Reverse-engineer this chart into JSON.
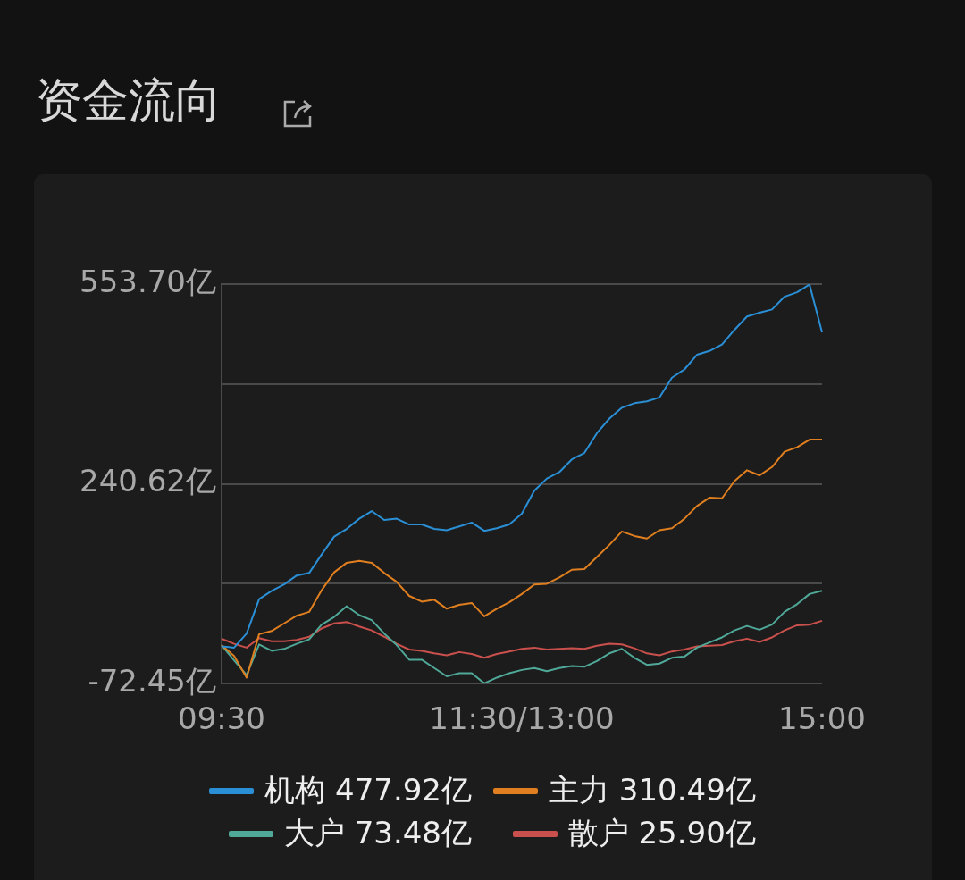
{
  "chart_data": {
    "type": "line",
    "title": "资金流向",
    "categories": [
      "09:30",
      null,
      null,
      null,
      null,
      null,
      null,
      null,
      null,
      null,
      null,
      null,
      null,
      null,
      null,
      null,
      null,
      null,
      null,
      null,
      null,
      null,
      null,
      null,
      "11:30/13:00",
      null,
      null,
      null,
      null,
      null,
      null,
      null,
      null,
      null,
      null,
      null,
      null,
      null,
      null,
      null,
      null,
      null,
      null,
      null,
      null,
      null,
      null,
      null,
      "15:00"
    ],
    "ylim": [
      -72.45,
      553.7
    ],
    "yticks": [
      {
        "value": -72.45,
        "label": "-72.45亿"
      },
      {
        "value": 84.085,
        "label": null
      },
      {
        "value": 240.62,
        "label": "240.62亿"
      },
      {
        "value": 397.16,
        "label": null
      },
      {
        "value": 553.7,
        "label": "553.70亿"
      }
    ],
    "grid": "y",
    "legend": "bottom",
    "marker": "none",
    "line_style": "solid",
    "series": [
      {
        "name": "机构 477.92亿",
        "color": "#2b8fd6",
        "values": [
          -14,
          -16,
          6,
          60,
          73,
          83,
          97,
          101,
          130,
          158,
          170,
          186,
          198,
          184,
          186,
          177,
          177,
          170,
          168,
          174,
          180,
          167,
          171,
          177,
          194,
          230,
          249,
          259,
          279,
          289,
          320,
          343,
          360,
          367,
          370,
          376,
          407,
          420,
          443,
          449,
          459,
          482,
          503,
          509,
          514,
          534,
          541,
          553,
          478
        ]
      },
      {
        "name": "主力 310.49亿",
        "color": "#e07f1f",
        "values": [
          -12,
          -29,
          -63,
          5,
          10,
          22,
          34,
          40,
          74,
          102,
          117,
          120,
          117,
          101,
          87,
          65,
          56,
          59,
          45,
          51,
          54,
          33,
          45,
          55,
          68,
          83,
          84,
          94,
          106,
          107,
          126,
          145,
          166,
          159,
          155,
          168,
          171,
          186,
          206,
          219,
          218,
          245,
          262,
          254,
          267,
          291,
          298,
          310,
          310
        ]
      },
      {
        "name": "大户 73.48亿",
        "color": "#4fa898",
        "values": [
          -12,
          -36,
          -59,
          -11,
          -21,
          -18,
          -10,
          -3,
          20,
          32,
          49,
          35,
          27,
          6,
          -12,
          -35,
          -35,
          -48,
          -61,
          -56,
          -56,
          -72,
          -63,
          -56,
          -51,
          -48,
          -53,
          -48,
          -45,
          -46,
          -37,
          -25,
          -18,
          -32,
          -43,
          -41,
          -32,
          -30,
          -16,
          -8,
          0,
          11,
          18,
          12,
          20,
          40,
          52,
          68,
          73
        ]
      },
      {
        "name": "散户 25.90亿",
        "color": "#c9504c",
        "values": [
          -2,
          -10,
          -16,
          -1,
          -6,
          -6,
          -4,
          1,
          14,
          22,
          24,
          17,
          11,
          1,
          -10,
          -19,
          -21,
          -25,
          -28,
          -23,
          -26,
          -32,
          -26,
          -22,
          -18,
          -16,
          -19,
          -18,
          -17,
          -18,
          -13,
          -10,
          -11,
          -17,
          -25,
          -28,
          -22,
          -19,
          -14,
          -13,
          -12,
          -6,
          -2,
          -7,
          0,
          11,
          19,
          20,
          26
        ]
      }
    ]
  }
}
